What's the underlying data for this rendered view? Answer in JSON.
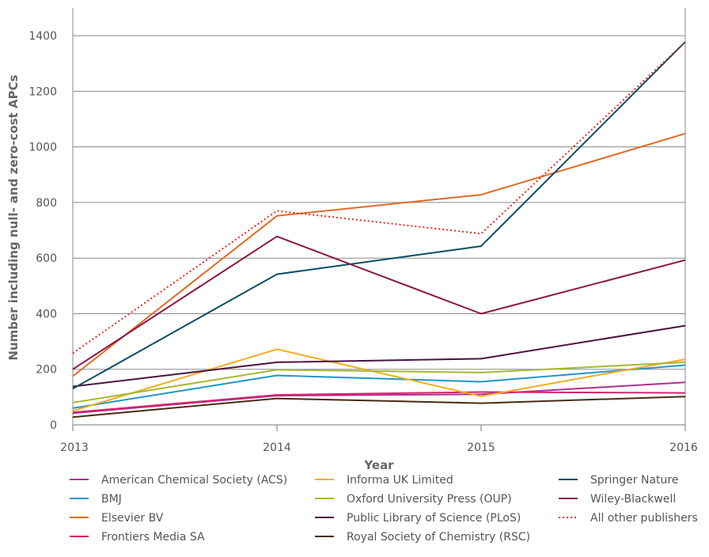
{
  "chart_data": {
    "type": "line",
    "title": "",
    "xlabel": "Year",
    "ylabel": "Number including null- and zero-cost APCs",
    "x": [
      "2013",
      "2014",
      "2015",
      "2016"
    ],
    "ylim": [
      0,
      1500
    ],
    "yticks": [
      "0",
      "200",
      "400",
      "600",
      "800",
      "1000",
      "1200",
      "1400"
    ],
    "grid": "horizontal",
    "legend_position": "bottom",
    "series": [
      {
        "name": "American Chemical Society (ACS)",
        "color": "#b0308f",
        "style": "solid",
        "values": [
          42,
          105,
          110,
          153
        ]
      },
      {
        "name": "BMJ",
        "color": "#1f96c9",
        "style": "solid",
        "values": [
          60,
          178,
          155,
          215
        ]
      },
      {
        "name": "Elsevier BV",
        "color": "#e06a24",
        "style": "solid",
        "values": [
          175,
          752,
          828,
          1048
        ]
      },
      {
        "name": "Frontiers Media SA",
        "color": "#d6236d",
        "style": "solid",
        "values": [
          45,
          108,
          118,
          115
        ]
      },
      {
        "name": "Informa UK Limited",
        "color": "#f2ad1e",
        "style": "solid",
        "values": [
          50,
          272,
          103,
          236
        ]
      },
      {
        "name": "Oxford University Press (OUP)",
        "color": "#a9b733",
        "style": "solid",
        "values": [
          80,
          198,
          188,
          225
        ]
      },
      {
        "name": "Public Library of Science (PLoS)",
        "color": "#4a1340",
        "style": "solid",
        "values": [
          138,
          225,
          238,
          357
        ]
      },
      {
        "name": "Royal Society of Chemistry (RSC)",
        "color": "#4a2a12",
        "style": "solid",
        "values": [
          28,
          95,
          78,
          102
        ]
      },
      {
        "name": "Springer Nature",
        "color": "#0c4d63",
        "style": "solid",
        "values": [
          130,
          542,
          643,
          1378
        ]
      },
      {
        "name": "Wiley-Blackwell",
        "color": "#8c1545",
        "style": "solid",
        "values": [
          200,
          678,
          400,
          593
        ]
      },
      {
        "name": "All other publishers",
        "color": "#e8281e",
        "style": "dotted",
        "values": [
          258,
          770,
          688,
          1378
        ]
      }
    ]
  }
}
